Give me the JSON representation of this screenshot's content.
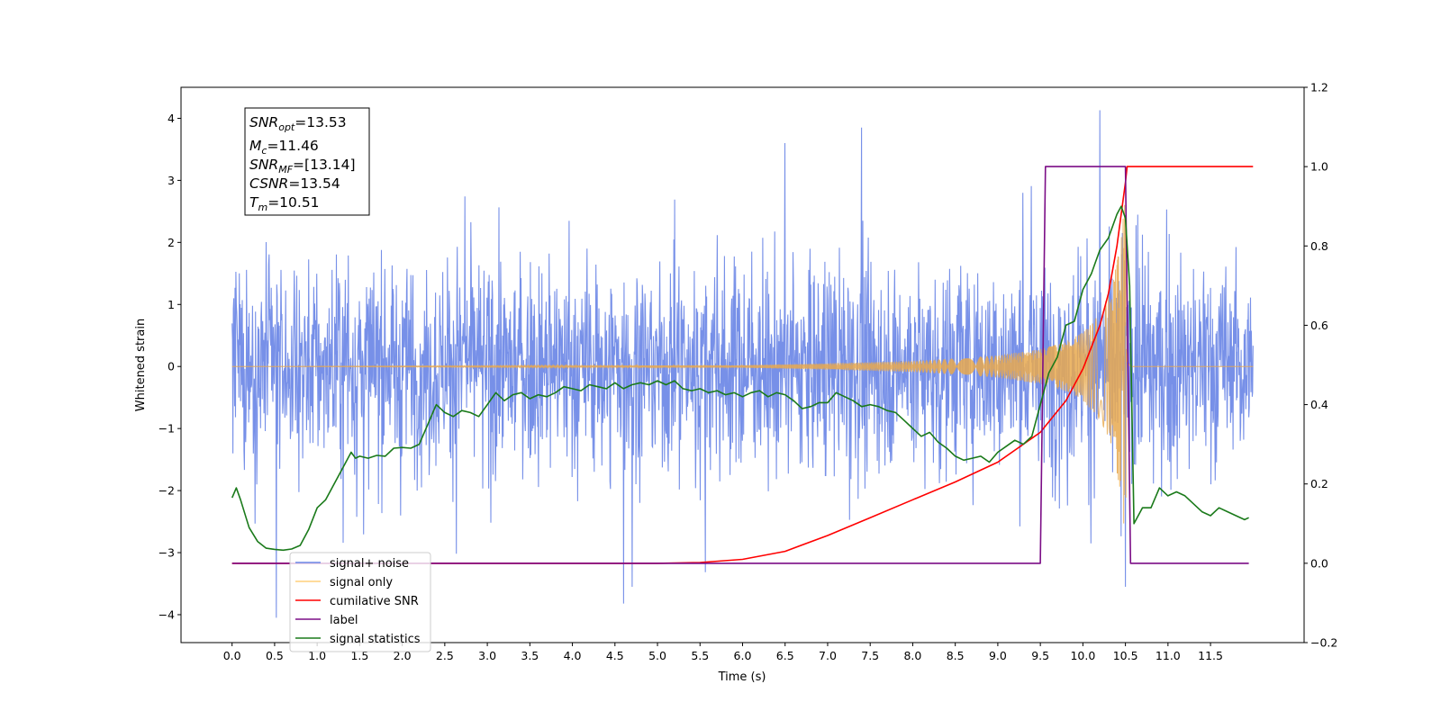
{
  "chart_data": {
    "type": "line",
    "xlabel": "Time (s)",
    "ylabel": "Whitened strain",
    "xlim": [
      -0.6,
      12.6
    ],
    "ylim": [
      -4.45,
      4.5
    ],
    "ylim_right": [
      -0.2,
      1.2
    ],
    "x_ticks": [
      "0.0",
      "0.5",
      "1.0",
      "1.5",
      "2.0",
      "2.5",
      "3.0",
      "3.5",
      "4.0",
      "4.5",
      "5.0",
      "5.5",
      "6.0",
      "6.5",
      "7.0",
      "7.5",
      "8.0",
      "8.5",
      "9.0",
      "9.5",
      "10.0",
      "10.5",
      "11.0",
      "11.5"
    ],
    "y_ticks": [
      "−4",
      "−3",
      "−2",
      "−1",
      "0",
      "1",
      "2",
      "3",
      "4"
    ],
    "y_ticks_right": [
      "−0.2",
      "0.0",
      "0.2",
      "0.4",
      "0.6",
      "0.8",
      "1.0",
      "1.2"
    ],
    "legend_position": "lower-left",
    "series": [
      {
        "name": "signal+ noise",
        "color": "#6b87e6",
        "axis": "left",
        "duration": 12.0,
        "envelope_max": 4.13,
        "envelope_min": -4.05,
        "spikes": [
          [
            0.52,
            -4.05
          ],
          [
            4.6,
            -3.82
          ],
          [
            4.7,
            -3.55
          ],
          [
            10.2,
            4.13
          ],
          [
            10.5,
            -3.55
          ],
          [
            7.4,
            3.85
          ],
          [
            6.5,
            3.6
          ]
        ]
      },
      {
        "name": "signal only",
        "color": "#ffa500",
        "axis": "left",
        "note_envelope": [
          [
            0.0,
            0.0
          ],
          [
            6.0,
            0.02
          ],
          [
            7.0,
            0.05
          ],
          [
            8.0,
            0.09
          ],
          [
            8.5,
            0.13
          ],
          [
            9.0,
            0.18
          ],
          [
            9.5,
            0.28
          ],
          [
            9.8,
            0.4
          ],
          [
            10.0,
            0.55
          ],
          [
            10.2,
            0.85
          ],
          [
            10.35,
            1.3
          ],
          [
            10.45,
            2.1
          ],
          [
            10.5,
            2.85
          ],
          [
            10.52,
            0.5
          ],
          [
            10.56,
            0.0
          ],
          [
            12.0,
            0.0
          ]
        ],
        "merger_time": 10.51
      },
      {
        "name": "cumilative SNR",
        "color": "#ff0000",
        "axis": "right",
        "x": [
          0.0,
          5.0,
          5.5,
          6.0,
          6.5,
          7.0,
          7.5,
          8.0,
          8.5,
          9.0,
          9.5,
          9.8,
          10.0,
          10.2,
          10.3,
          10.4,
          10.45,
          10.5,
          10.52,
          12.0
        ],
        "y": [
          0.0,
          0.0,
          0.002,
          0.01,
          0.03,
          0.07,
          0.115,
          0.16,
          0.205,
          0.255,
          0.33,
          0.41,
          0.49,
          0.6,
          0.68,
          0.8,
          0.88,
          0.96,
          1.0,
          1.0
        ]
      },
      {
        "name": "label",
        "color": "#7b0d86",
        "axis": "right",
        "x": [
          0.0,
          9.5,
          9.56,
          10.5,
          10.56,
          11.95
        ],
        "y": [
          0.0,
          0.0,
          1.0,
          1.0,
          0.0,
          0.0
        ]
      },
      {
        "name": "signal statistics",
        "color": "#1a7a1a",
        "axis": "right",
        "x": [
          0.0,
          0.05,
          0.1,
          0.2,
          0.3,
          0.4,
          0.5,
          0.6,
          0.7,
          0.8,
          0.9,
          1.0,
          1.1,
          1.2,
          1.3,
          1.4,
          1.45,
          1.5,
          1.6,
          1.7,
          1.8,
          1.9,
          2.0,
          2.1,
          2.2,
          2.3,
          2.4,
          2.5,
          2.6,
          2.7,
          2.8,
          2.9,
          3.0,
          3.1,
          3.2,
          3.3,
          3.4,
          3.5,
          3.6,
          3.7,
          3.8,
          3.9,
          4.0,
          4.1,
          4.2,
          4.3,
          4.4,
          4.5,
          4.6,
          4.7,
          4.8,
          4.9,
          5.0,
          5.1,
          5.2,
          5.3,
          5.4,
          5.5,
          5.6,
          5.7,
          5.8,
          5.9,
          6.0,
          6.1,
          6.2,
          6.3,
          6.4,
          6.5,
          6.6,
          6.7,
          6.8,
          6.9,
          7.0,
          7.1,
          7.2,
          7.3,
          7.4,
          7.5,
          7.6,
          7.7,
          7.8,
          7.9,
          8.0,
          8.1,
          8.2,
          8.3,
          8.4,
          8.5,
          8.6,
          8.7,
          8.8,
          8.9,
          9.0,
          9.1,
          9.2,
          9.3,
          9.4,
          9.5,
          9.6,
          9.7,
          9.8,
          9.9,
          10.0,
          10.1,
          10.15,
          10.2,
          10.3,
          10.4,
          10.45,
          10.5,
          10.55,
          10.6,
          10.7,
          10.8,
          10.9,
          11.0,
          11.1,
          11.2,
          11.3,
          11.4,
          11.5,
          11.6,
          11.7,
          11.8,
          11.9,
          11.95
        ],
        "y": [
          0.165,
          0.19,
          0.16,
          0.09,
          0.055,
          0.038,
          0.035,
          0.033,
          0.036,
          0.045,
          0.085,
          0.14,
          0.16,
          0.2,
          0.24,
          0.28,
          0.265,
          0.27,
          0.265,
          0.272,
          0.27,
          0.29,
          0.292,
          0.29,
          0.3,
          0.35,
          0.4,
          0.38,
          0.37,
          0.385,
          0.38,
          0.37,
          0.4,
          0.43,
          0.41,
          0.425,
          0.43,
          0.415,
          0.425,
          0.42,
          0.43,
          0.445,
          0.44,
          0.435,
          0.45,
          0.445,
          0.44,
          0.455,
          0.44,
          0.45,
          0.455,
          0.45,
          0.46,
          0.45,
          0.46,
          0.44,
          0.435,
          0.44,
          0.43,
          0.435,
          0.425,
          0.43,
          0.42,
          0.43,
          0.435,
          0.42,
          0.43,
          0.425,
          0.41,
          0.39,
          0.395,
          0.405,
          0.405,
          0.43,
          0.42,
          0.41,
          0.395,
          0.4,
          0.395,
          0.385,
          0.38,
          0.36,
          0.34,
          0.32,
          0.33,
          0.305,
          0.29,
          0.27,
          0.26,
          0.265,
          0.27,
          0.255,
          0.28,
          0.295,
          0.31,
          0.3,
          0.32,
          0.4,
          0.48,
          0.52,
          0.6,
          0.61,
          0.69,
          0.73,
          0.76,
          0.79,
          0.82,
          0.88,
          0.9,
          0.87,
          0.7,
          0.1,
          0.14,
          0.14,
          0.19,
          0.17,
          0.18,
          0.17,
          0.15,
          0.13,
          0.12,
          0.14,
          0.13,
          0.12,
          0.11,
          0.115
        ]
      }
    ]
  },
  "info_box": {
    "lines": [
      {
        "sym": "SNR",
        "sub": "opt",
        "value": "=13.53"
      },
      {
        "sym": "M",
        "sub": "c",
        "value": "=11.46"
      },
      {
        "sym": "SNR",
        "sub": "MF",
        "value": "=[13.14]"
      },
      {
        "sym": "CSNR",
        "sub": "",
        "value": "=13.54"
      },
      {
        "sym": "T",
        "sub": "m",
        "value": "=10.51"
      }
    ]
  },
  "legend": {
    "entries": [
      {
        "label": "signal+ noise",
        "color": "#6b87e6"
      },
      {
        "label": "signal only",
        "color": "#ffcf7a"
      },
      {
        "label": "cumilative SNR",
        "color": "#ff0000"
      },
      {
        "label": "label",
        "color": "#7b0d86"
      },
      {
        "label": "signal statistics",
        "color": "#1a7a1a"
      }
    ]
  }
}
